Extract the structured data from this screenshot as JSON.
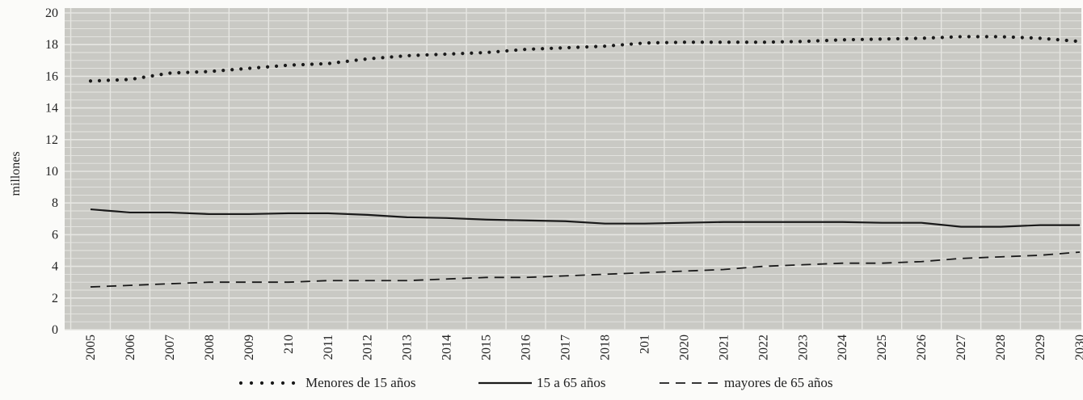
{
  "chart_data": {
    "type": "line",
    "title": "",
    "xlabel": "",
    "ylabel": "millones",
    "ylim": [
      0,
      20
    ],
    "yticks": [
      0,
      2,
      4,
      6,
      8,
      10,
      12,
      14,
      16,
      18,
      20
    ],
    "grid": true,
    "legend_position": "bottom",
    "categories": [
      "2005",
      "2006",
      "2007",
      "2008",
      "2009",
      "210",
      "2011",
      "2012",
      "2013",
      "2014",
      "2015",
      "2016",
      "2017",
      "2018",
      "201",
      "2020",
      "2021",
      "2022",
      "2023",
      "2024",
      "2025",
      "2026",
      "2027",
      "2028",
      "2029",
      "2030"
    ],
    "series": [
      {
        "name": "Menores de 15 años",
        "style": "dotted",
        "color": "#1a1a1a",
        "values": [
          15.7,
          15.8,
          16.2,
          16.3,
          16.5,
          16.7,
          16.8,
          17.1,
          17.3,
          17.4,
          17.5,
          17.7,
          17.8,
          17.9,
          18.1,
          18.15,
          18.15,
          18.15,
          18.2,
          18.3,
          18.35,
          18.4,
          18.5,
          18.5,
          18.4,
          18.2
        ]
      },
      {
        "name": "15 a 65 años",
        "style": "solid",
        "color": "#1a1a1a",
        "values": [
          7.6,
          7.4,
          7.4,
          7.3,
          7.3,
          7.35,
          7.35,
          7.25,
          7.1,
          7.05,
          6.95,
          6.9,
          6.85,
          6.7,
          6.7,
          6.75,
          6.8,
          6.8,
          6.8,
          6.8,
          6.75,
          6.75,
          6.5,
          6.5,
          6.6,
          6.6
        ]
      },
      {
        "name": "mayores de 65 años",
        "style": "dashed",
        "color": "#1a1a1a",
        "values": [
          2.7,
          2.8,
          2.9,
          3.0,
          3.0,
          3.0,
          3.1,
          3.1,
          3.1,
          3.2,
          3.3,
          3.3,
          3.4,
          3.5,
          3.6,
          3.7,
          3.8,
          4.0,
          4.1,
          4.2,
          4.2,
          4.3,
          4.5,
          4.6,
          4.7,
          4.9
        ]
      }
    ]
  },
  "colors": {
    "plot_background": "#c9c9c4",
    "grid": "#e6e6e2"
  }
}
